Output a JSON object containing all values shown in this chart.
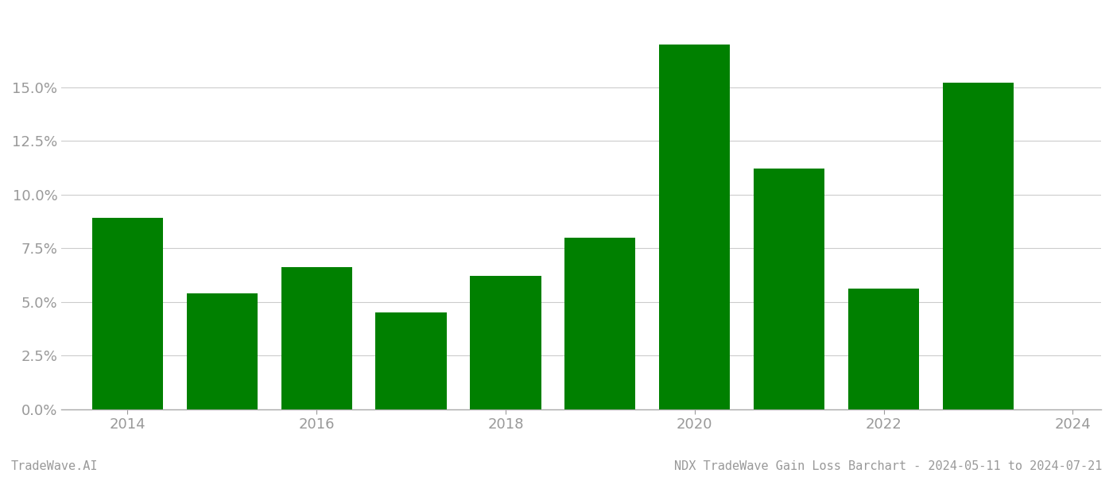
{
  "years": [
    2014,
    2015,
    2016,
    2017,
    2018,
    2019,
    2020,
    2021,
    2022,
    2023
  ],
  "values": [
    0.089,
    0.054,
    0.066,
    0.045,
    0.062,
    0.08,
    0.17,
    0.112,
    0.056,
    0.152
  ],
  "bar_color": "#008000",
  "background_color": "#ffffff",
  "ylabel_ticks": [
    0.0,
    0.025,
    0.05,
    0.075,
    0.1,
    0.125,
    0.15
  ],
  "ylim": [
    0.0,
    0.185
  ],
  "xtick_positions": [
    2014,
    2016,
    2018,
    2020,
    2022,
    2024
  ],
  "xtick_labels": [
    "2014",
    "2016",
    "2018",
    "2020",
    "2022",
    "2024"
  ],
  "xlim": [
    2013.3,
    2024.3
  ],
  "footer_left": "TradeWave.AI",
  "footer_right": "NDX TradeWave Gain Loss Barchart - 2024-05-11 to 2024-07-21",
  "grid_color": "#cccccc",
  "tick_color": "#999999",
  "bar_width": 0.75,
  "figure_width": 14.0,
  "figure_height": 6.0,
  "dpi": 100
}
